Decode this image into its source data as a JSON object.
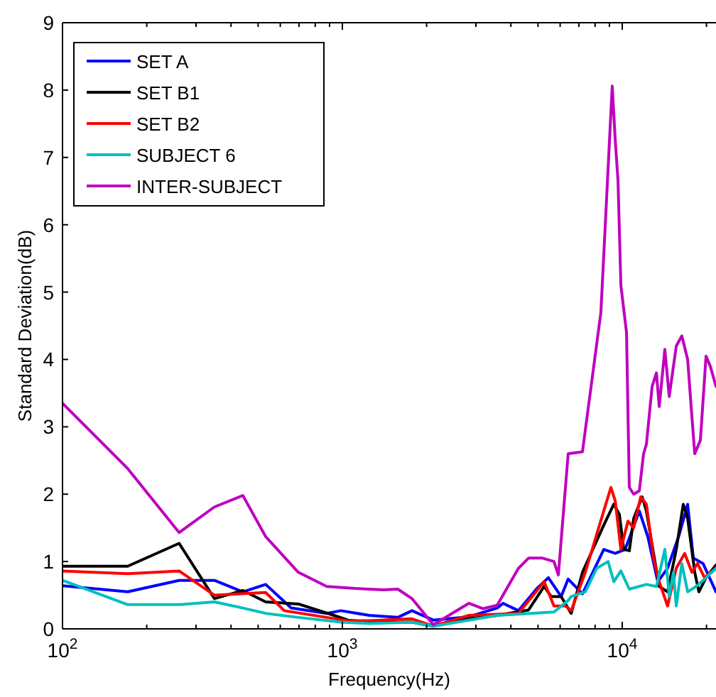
{
  "chart_data": {
    "type": "line",
    "xlabel": "Frequency(Hz)",
    "ylabel": "Standard Deviation(dB)",
    "log": "x",
    "xlim": [
      100,
      21630
    ],
    "ylim": [
      0,
      9
    ],
    "xticks": [
      {
        "value": 100,
        "label": "10$^{2}$"
      },
      {
        "value": 200,
        "label": null
      },
      {
        "value": 300,
        "label": null
      },
      {
        "value": 400,
        "label": null
      },
      {
        "value": 500,
        "label": null
      },
      {
        "value": 600,
        "label": null
      },
      {
        "value": 700,
        "label": null
      },
      {
        "value": 800,
        "label": null
      },
      {
        "value": 900,
        "label": null
      },
      {
        "value": 1000,
        "label": "10$^{3}$"
      },
      {
        "value": 2000,
        "label": null
      },
      {
        "value": 3000,
        "label": null
      },
      {
        "value": 4000,
        "label": null
      },
      {
        "value": 5000,
        "label": null
      },
      {
        "value": 6000,
        "label": null
      },
      {
        "value": 7000,
        "label": null
      },
      {
        "value": 8000,
        "label": null
      },
      {
        "value": 9000,
        "label": null
      },
      {
        "value": 10000,
        "label": "10$^{4}$"
      },
      {
        "value": 20000,
        "label": null
      }
    ],
    "yticks": [
      0,
      1,
      2,
      3,
      4,
      5,
      6,
      7,
      8,
      9
    ],
    "grid": false,
    "legend": "top left",
    "marker": "none",
    "line_style": "solid",
    "series": [
      {
        "name": "SET A",
        "color": "#0000ff",
        "x": [
          100,
          171,
          261,
          349,
          441,
          532,
          656,
          879,
          988,
          1248,
          1578,
          1773,
          2113,
          2831,
          3574,
          3750,
          4259,
          4957,
          5445,
          6050,
          6410,
          7210,
          8590,
          9440,
          10240,
          11510,
          12340,
          13400,
          14520,
          15960,
          17130,
          17950,
          19450,
          21630
        ],
        "values": [
          0.64,
          0.55,
          0.72,
          0.72,
          0.55,
          0.66,
          0.31,
          0.23,
          0.27,
          0.2,
          0.17,
          0.27,
          0.13,
          0.18,
          0.31,
          0.38,
          0.27,
          0.6,
          0.76,
          0.48,
          0.74,
          0.52,
          1.18,
          1.12,
          1.18,
          1.75,
          1.37,
          0.7,
          0.9,
          1.39,
          1.85,
          1.05,
          0.97,
          0.55
        ]
      },
      {
        "name": "SET B1",
        "color": "#000000",
        "x": [
          100,
          171,
          261,
          349,
          441,
          532,
          696,
          933,
          1047,
          1248,
          1773,
          2113,
          2831,
          3574,
          4625,
          5260,
          5572,
          6050,
          6570,
          7210,
          8590,
          9330,
          9770,
          10120,
          10600,
          10990,
          11780,
          12200,
          12940,
          13560,
          14520,
          15600,
          16520,
          17130,
          18160,
          18790,
          19930,
          21630
        ],
        "values": [
          0.93,
          0.93,
          1.27,
          0.45,
          0.57,
          0.4,
          0.37,
          0.2,
          0.13,
          0.1,
          0.1,
          0.04,
          0.15,
          0.2,
          0.28,
          0.63,
          0.48,
          0.48,
          0.23,
          0.84,
          1.54,
          1.85,
          1.7,
          1.18,
          1.16,
          1.64,
          1.96,
          1.75,
          1.12,
          0.63,
          0.55,
          1.18,
          1.85,
          1.64,
          0.84,
          0.55,
          0.76,
          0.95
        ]
      },
      {
        "name": "SET B2",
        "color": "#ff0000",
        "x": [
          100,
          171,
          261,
          349,
          532,
          620,
          879,
          1047,
          1248,
          1773,
          2113,
          2831,
          4259,
          5260,
          5702,
          6270,
          6570,
          6960,
          7380,
          8590,
          9110,
          9440,
          9890,
          10480,
          10990,
          11640,
          12200,
          12940,
          13560,
          14520,
          15600,
          16720,
          17740,
          18580,
          19680,
          21630
        ],
        "values": [
          0.86,
          0.82,
          0.86,
          0.5,
          0.54,
          0.27,
          0.17,
          0.12,
          0.12,
          0.15,
          0.04,
          0.2,
          0.23,
          0.7,
          0.34,
          0.34,
          0.27,
          0.55,
          0.84,
          1.75,
          2.1,
          1.9,
          1.18,
          1.6,
          1.5,
          1.96,
          1.85,
          1.05,
          0.7,
          0.34,
          0.9,
          1.12,
          0.84,
          0.97,
          0.76,
          0.9
        ]
      },
      {
        "name": "SUBJECT 6",
        "color": "#00bfbf",
        "x": [
          100,
          171,
          261,
          349,
          441,
          532,
          696,
          988,
          1248,
          1773,
          2113,
          3574,
          5702,
          6410,
          6570,
          7380,
          8110,
          8900,
          9330,
          9890,
          10600,
          12200,
          13250,
          14200,
          14720,
          15230,
          15600,
          16330,
          17130,
          18360,
          19930,
          21630
        ],
        "values": [
          0.72,
          0.36,
          0.36,
          0.4,
          0.31,
          0.23,
          0.17,
          0.1,
          0.08,
          0.1,
          0.04,
          0.2,
          0.25,
          0.42,
          0.48,
          0.55,
          0.9,
          1.0,
          0.7,
          0.86,
          0.59,
          0.66,
          0.63,
          1.18,
          0.48,
          0.84,
          0.34,
          0.97,
          0.55,
          0.63,
          0.76,
          0.9
        ]
      },
      {
        "name": "INTER-SUBJECT",
        "color": "#bf00bf",
        "x": [
          100,
          171,
          261,
          349,
          441,
          532,
          696,
          879,
          1111,
          1403,
          1578,
          1773,
          2113,
          2831,
          3183,
          3574,
          4259,
          4625,
          5197,
          5702,
          5912,
          6410,
          7210,
          7380,
          8390,
          9210,
          9440,
          9660,
          9890,
          10360,
          10600,
          10990,
          11510,
          11920,
          12200,
          12790,
          13250,
          13560,
          14200,
          14720,
          15600,
          16330,
          17130,
          17740,
          18160,
          19020,
          19930,
          20640,
          21630
        ],
        "values": [
          3.35,
          2.38,
          1.43,
          1.81,
          1.98,
          1.37,
          0.84,
          0.63,
          0.6,
          0.58,
          0.59,
          0.45,
          0.06,
          0.38,
          0.3,
          0.35,
          0.9,
          1.05,
          1.05,
          1.0,
          0.8,
          2.6,
          2.63,
          2.95,
          4.7,
          8.06,
          7.26,
          6.65,
          5.1,
          4.4,
          2.1,
          2.0,
          2.05,
          2.6,
          2.74,
          3.6,
          3.8,
          3.3,
          4.15,
          3.45,
          4.2,
          4.35,
          4.0,
          3.15,
          2.6,
          2.8,
          4.05,
          3.9,
          3.6
        ]
      }
    ]
  }
}
